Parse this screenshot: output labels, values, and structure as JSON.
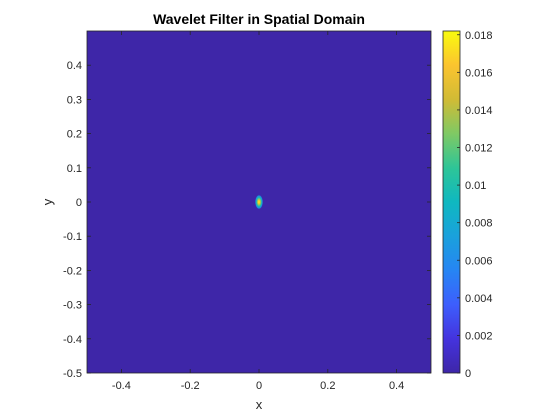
{
  "chart_data": {
    "type": "heatmap",
    "title": "Wavelet Filter in Spatial Domain",
    "xlabel": "x",
    "ylabel": "y",
    "xlim": [
      -0.5,
      0.5
    ],
    "ylim": [
      -0.5,
      0.5
    ],
    "xticks": [
      -0.4,
      -0.2,
      0,
      0.2,
      0.4
    ],
    "xtick_labels": [
      "-0.4",
      "-0.2",
      "0",
      "0.2",
      "0.4"
    ],
    "yticks": [
      -0.5,
      -0.4,
      -0.3,
      -0.2,
      -0.1,
      0,
      0.1,
      0.2,
      0.3,
      0.4
    ],
    "ytick_labels": [
      "-0.5",
      "-0.4",
      "-0.3",
      "-0.2",
      "-0.1",
      "0",
      "0.1",
      "0.2",
      "0.3",
      "0.4"
    ],
    "colorbar": {
      "min": 0,
      "max": 0.0182,
      "ticks": [
        0,
        0.002,
        0.004,
        0.006,
        0.008,
        0.01,
        0.012,
        0.014,
        0.016,
        0.018
      ],
      "tick_labels": [
        "0",
        "0.002",
        "0.004",
        "0.006",
        "0.008",
        "0.01",
        "0.012",
        "0.014",
        "0.016",
        "0.018"
      ],
      "colormap": "parula"
    },
    "peak": {
      "x": 0,
      "y": 0,
      "value": 0.0182
    },
    "spread": {
      "sigma_x": 0.012,
      "sigma_y": 0.022
    },
    "background_color": "#3e26a8",
    "grid": false
  }
}
